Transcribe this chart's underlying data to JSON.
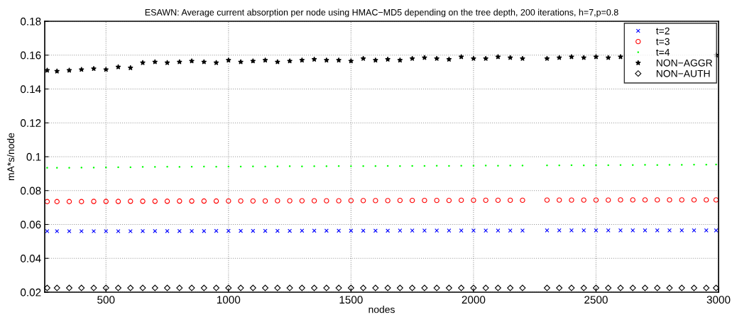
{
  "chart_data": {
    "type": "scatter",
    "title": "ESAWN: Average current absorption per node using HMAC−MD5 depending on the tree depth, 200 iterations, h=7,p=0.8",
    "xlabel": "nodes",
    "ylabel": "mA*s/node",
    "x": [
      260,
      300,
      350,
      400,
      450,
      500,
      550,
      600,
      650,
      700,
      750,
      800,
      850,
      900,
      950,
      1000,
      1050,
      1100,
      1150,
      1200,
      1250,
      1300,
      1350,
      1400,
      1450,
      1500,
      1550,
      1600,
      1650,
      1700,
      1750,
      1800,
      1850,
      1900,
      1950,
      2000,
      2050,
      2100,
      2150,
      2200,
      2300,
      2350,
      2400,
      2450,
      2500,
      2550,
      2600,
      2650,
      2700,
      2750,
      2800,
      2850,
      2900,
      2950,
      2990
    ],
    "series": [
      {
        "name": "t=2",
        "color": "#0000ff",
        "marker": "cross",
        "values": [
          0.056,
          0.056,
          0.056,
          0.056,
          0.056,
          0.056,
          0.056,
          0.056,
          0.0561,
          0.0561,
          0.0561,
          0.0561,
          0.0561,
          0.0561,
          0.0562,
          0.0562,
          0.0562,
          0.0562,
          0.0562,
          0.0562,
          0.0562,
          0.0563,
          0.0563,
          0.0563,
          0.0563,
          0.0563,
          0.0563,
          0.0563,
          0.0563,
          0.0564,
          0.0564,
          0.0564,
          0.0564,
          0.0564,
          0.0564,
          0.0564,
          0.0564,
          0.0564,
          0.0564,
          0.0564,
          0.0565,
          0.0565,
          0.0565,
          0.0565,
          0.0565,
          0.0565,
          0.0565,
          0.0565,
          0.0565,
          0.0565,
          0.0565,
          0.0565,
          0.0565,
          0.0565,
          0.0565
        ]
      },
      {
        "name": "t=3",
        "color": "#ff0000",
        "marker": "circle",
        "values": [
          0.0735,
          0.0735,
          0.0735,
          0.0735,
          0.0736,
          0.0736,
          0.0736,
          0.0737,
          0.0737,
          0.0737,
          0.0737,
          0.0738,
          0.0738,
          0.0738,
          0.0738,
          0.0739,
          0.0739,
          0.0739,
          0.0739,
          0.074,
          0.074,
          0.074,
          0.074,
          0.074,
          0.074,
          0.0741,
          0.0741,
          0.0741,
          0.0741,
          0.0742,
          0.0742,
          0.0742,
          0.0742,
          0.0742,
          0.0743,
          0.0743,
          0.0743,
          0.0743,
          0.0743,
          0.0743,
          0.0744,
          0.0744,
          0.0744,
          0.0744,
          0.0744,
          0.0744,
          0.0745,
          0.0745,
          0.0745,
          0.0745,
          0.0745,
          0.0745,
          0.0745,
          0.0745,
          0.0745
        ]
      },
      {
        "name": "t=4",
        "color": "#00ff00",
        "marker": "point",
        "values": [
          0.0935,
          0.0935,
          0.0935,
          0.0936,
          0.0936,
          0.0937,
          0.0938,
          0.0938,
          0.094,
          0.094,
          0.0941,
          0.094,
          0.0941,
          0.0942,
          0.0941,
          0.0942,
          0.0942,
          0.0943,
          0.0942,
          0.0943,
          0.0944,
          0.0943,
          0.0944,
          0.0944,
          0.0945,
          0.0944,
          0.0945,
          0.0945,
          0.0946,
          0.0945,
          0.0946,
          0.0946,
          0.0947,
          0.0946,
          0.0947,
          0.0947,
          0.0948,
          0.0947,
          0.0948,
          0.0948,
          0.0949,
          0.0949,
          0.095,
          0.0949,
          0.095,
          0.095,
          0.0951,
          0.0951,
          0.0952,
          0.0951,
          0.0952,
          0.0952,
          0.0953,
          0.0953,
          0.0954
        ]
      },
      {
        "name": "NON−AGGR",
        "color": "#000000",
        "marker": "star",
        "values": [
          0.151,
          0.1505,
          0.151,
          0.1515,
          0.152,
          0.1515,
          0.153,
          0.1525,
          0.1555,
          0.156,
          0.1555,
          0.156,
          0.1565,
          0.156,
          0.1555,
          0.157,
          0.156,
          0.1565,
          0.157,
          0.156,
          0.1565,
          0.157,
          0.1575,
          0.157,
          0.157,
          0.1565,
          0.158,
          0.157,
          0.1575,
          0.157,
          0.158,
          0.1585,
          0.158,
          0.1575,
          0.159,
          0.158,
          0.158,
          0.159,
          0.1585,
          0.158,
          0.158,
          0.1585,
          0.159,
          0.1585,
          0.159,
          0.1585,
          0.159,
          null,
          null,
          null,
          null,
          null,
          null,
          null,
          0.16
        ]
      },
      {
        "name": "NON−AUTH",
        "color": "#000000",
        "marker": "diamond",
        "values": [
          0.0225,
          0.0225,
          0.0225,
          0.0225,
          0.0225,
          0.0225,
          0.0225,
          0.0225,
          0.0225,
          0.0225,
          0.0225,
          0.0225,
          0.0225,
          0.0225,
          0.0225,
          0.0225,
          0.0225,
          0.0225,
          0.0225,
          0.0225,
          0.0225,
          0.0225,
          0.0225,
          0.0225,
          0.0225,
          0.0225,
          0.0225,
          0.0225,
          0.0225,
          0.0225,
          0.0225,
          0.0225,
          0.0225,
          0.0225,
          0.0225,
          0.0225,
          0.0225,
          0.0225,
          0.0225,
          0.0225,
          0.0225,
          0.0225,
          0.0225,
          0.0225,
          0.0225,
          0.0225,
          0.0225,
          0.0225,
          0.0225,
          0.0225,
          0.0225,
          0.0225,
          0.0225,
          0.0225,
          0.0225
        ]
      }
    ],
    "xlim": [
      250,
      3000
    ],
    "xticks": [
      500,
      1000,
      1500,
      2000,
      2500,
      3000
    ],
    "ylim": [
      0.02,
      0.18
    ],
    "yticks": [
      0.02,
      0.04,
      0.06,
      0.08,
      0.1,
      0.12,
      0.14,
      0.16,
      0.18
    ],
    "grid": true,
    "legend": "top right"
  }
}
